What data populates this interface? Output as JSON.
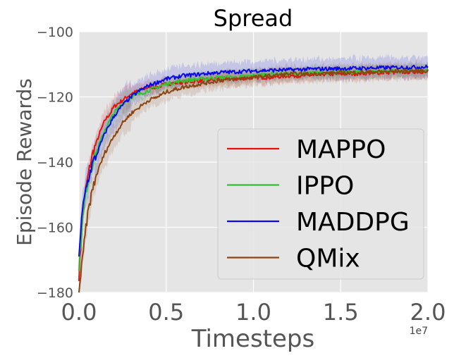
{
  "chart_data": {
    "type": "line",
    "title": "Spread",
    "xlabel": "Timesteps",
    "ylabel": "Episode Rewards",
    "x_offset_label": "1e7",
    "xlim": [
      0,
      2.0
    ],
    "ylim": [
      -180,
      -100
    ],
    "xticks": [
      0.0,
      0.5,
      1.0,
      1.5,
      2.0
    ],
    "xtick_labels": [
      "0.0",
      "0.5",
      "1.0",
      "1.5",
      "2.0"
    ],
    "yticks": [
      -180,
      -160,
      -140,
      -120,
      -100
    ],
    "ytick_labels": [
      "−180",
      "−160",
      "−140",
      "−120",
      "−100"
    ],
    "grid": true,
    "legend_position": "lower-right",
    "background": "#e5e5e5",
    "series": [
      {
        "name": "MAPPO",
        "color": "#e8100b",
        "x": [
          0,
          0.02,
          0.04,
          0.06,
          0.08,
          0.1,
          0.12,
          0.15,
          0.18,
          0.2,
          0.25,
          0.3,
          0.35,
          0.4,
          0.45,
          0.5,
          0.6,
          0.7,
          0.8,
          0.9,
          1.0,
          1.1,
          1.2,
          1.3,
          1.4,
          1.5,
          1.6,
          1.7,
          1.8,
          1.9,
          2.0
        ],
        "y": [
          -175,
          -158,
          -148,
          -142,
          -137,
          -134,
          -131,
          -127,
          -125,
          -123,
          -121,
          -119,
          -118,
          -117,
          -117,
          -116,
          -115.5,
          -115,
          -114.5,
          -114.5,
          -114,
          -114,
          -113.5,
          -113.5,
          -113,
          -113,
          -112.8,
          -112.6,
          -112.5,
          -112.3,
          -112.2
        ],
        "band": 2.0
      },
      {
        "name": "IPPO",
        "color": "#2ec42e",
        "x": [
          0,
          0.02,
          0.04,
          0.06,
          0.08,
          0.1,
          0.12,
          0.15,
          0.18,
          0.2,
          0.25,
          0.3,
          0.35,
          0.4,
          0.45,
          0.5,
          0.6,
          0.7,
          0.8,
          0.9,
          1.0,
          1.1,
          1.2,
          1.3,
          1.4,
          1.5,
          1.6,
          1.7,
          1.8,
          1.9,
          2.0
        ],
        "y": [
          -172,
          -158,
          -149,
          -144,
          -140,
          -137,
          -134,
          -130,
          -127,
          -125,
          -122,
          -120,
          -119,
          -118,
          -117,
          -116,
          -115,
          -114.5,
          -114,
          -114,
          -113.5,
          -113,
          -113,
          -112.8,
          -112.5,
          -112.5,
          -112.3,
          -112.2,
          -112,
          -112,
          -112
        ],
        "band": 2.0
      },
      {
        "name": "MADDPG",
        "color": "#0a0ae8",
        "x": [
          0,
          0.02,
          0.04,
          0.06,
          0.08,
          0.1,
          0.12,
          0.15,
          0.18,
          0.2,
          0.25,
          0.3,
          0.35,
          0.4,
          0.45,
          0.5,
          0.6,
          0.7,
          0.8,
          0.9,
          1.0,
          1.1,
          1.2,
          1.3,
          1.4,
          1.5,
          1.6,
          1.7,
          1.8,
          1.9,
          2.0
        ],
        "y": [
          -168,
          -155,
          -148,
          -144,
          -140,
          -138,
          -135,
          -131,
          -128,
          -126,
          -122.5,
          -120,
          -118,
          -116.5,
          -115.5,
          -114.5,
          -113.5,
          -113,
          -112.5,
          -112.3,
          -112,
          -111.8,
          -111.7,
          -111.5,
          -111.4,
          -111.3,
          -111.2,
          -111.1,
          -111,
          -110.9,
          -110.8
        ],
        "band": 3.0
      },
      {
        "name": "QMix",
        "color": "#8b4513",
        "x": [
          0,
          0.02,
          0.04,
          0.06,
          0.08,
          0.1,
          0.12,
          0.15,
          0.18,
          0.2,
          0.25,
          0.3,
          0.35,
          0.4,
          0.45,
          0.5,
          0.6,
          0.7,
          0.8,
          0.9,
          1.0,
          1.1,
          1.2,
          1.3,
          1.4,
          1.5,
          1.6,
          1.7,
          1.8,
          1.9,
          2.0
        ],
        "y": [
          -180,
          -170,
          -160,
          -153,
          -148,
          -144,
          -141,
          -137,
          -134,
          -132,
          -128,
          -125,
          -123,
          -121,
          -120,
          -118.5,
          -117,
          -116,
          -115,
          -114.5,
          -114,
          -113.5,
          -113,
          -113,
          -112.8,
          -112.6,
          -112.5,
          -112.3,
          -112.2,
          -112.1,
          -112
        ],
        "band": 2.5
      }
    ]
  }
}
